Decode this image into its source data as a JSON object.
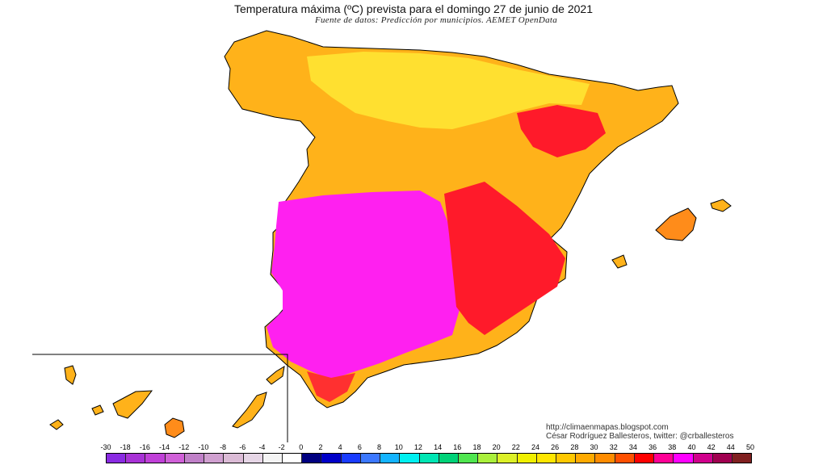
{
  "title": "Temperatura máxima (ºC) prevista para el domingo 27 de junio de 2021",
  "subtitle": "Fuente de datos: Predicción por municipios. AEMET OpenData",
  "credits": {
    "url": "http://climaenmapas.blogspot.com",
    "author": "César Rodríguez Ballesteros, twitter: @crballesteros"
  },
  "legend": {
    "labels": [
      "-30",
      "-18",
      "-16",
      "-14",
      "-12",
      "-10",
      "-8",
      "-6",
      "-4",
      "-2",
      "0",
      "2",
      "4",
      "6",
      "8",
      "10",
      "12",
      "14",
      "16",
      "18",
      "20",
      "22",
      "24",
      "26",
      "28",
      "30",
      "32",
      "34",
      "36",
      "38",
      "40",
      "42",
      "44",
      "50"
    ],
    "colors": [
      "#8a2be2",
      "#a832d6",
      "#c040d8",
      "#d060d8",
      "#c080c8",
      "#d0a0d0",
      "#dbbbd6",
      "#e6d6e6",
      "#f4f4f4",
      "#ffffff",
      "#000080",
      "#0000c8",
      "#1a3cff",
      "#3c78ff",
      "#14b4ff",
      "#00f0f0",
      "#00e6b4",
      "#00d278",
      "#50e650",
      "#aaf03c",
      "#dcf028",
      "#f0f000",
      "#ffe600",
      "#ffc800",
      "#ffaa00",
      "#ff8c00",
      "#ff5000",
      "#ff0000",
      "#ff0096",
      "#ff00ff",
      "#d0008c",
      "#a00050",
      "#802020"
    ]
  }
}
